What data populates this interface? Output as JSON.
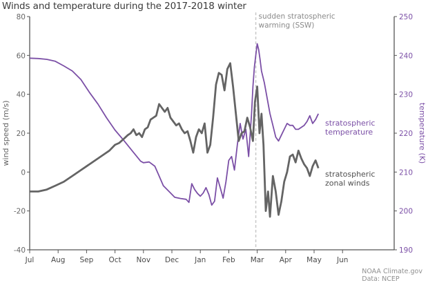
{
  "title": "Winds and temperature during the 2017-2018 winter",
  "credits": [
    "NOAA Climate.gov",
    "Data: NCEP"
  ],
  "colors": {
    "wind": "#646464",
    "temperature": "#7b4fa6",
    "axis": "#555555",
    "ssw_line": "#c8c8c8"
  },
  "chart_data": {
    "type": "line",
    "title": "Winds and temperature during the 2017-2018 winter",
    "xlabel": "",
    "x_ticks": [
      "Jul",
      "Aug",
      "Sep",
      "Oct",
      "Nov",
      "Dec",
      "Jan",
      "Feb",
      "Mar",
      "Apr",
      "May",
      "Jun"
    ],
    "y_left": {
      "label": "wind speed (m/s)",
      "ticks": [
        80,
        60,
        40,
        20,
        0,
        -20,
        -40
      ],
      "range": [
        -40,
        80
      ]
    },
    "y_right": {
      "label": "temperature (K)",
      "ticks": [
        250,
        240,
        230,
        220,
        210,
        200,
        190
      ],
      "range": [
        190,
        250
      ]
    },
    "annotation": {
      "text_line1": "sudden stratospheric",
      "text_line2": "warming (SSW)",
      "date_x_month": 7.95
    },
    "grid": false,
    "series": [
      {
        "name": "stratospheric zonal winds",
        "label_line1": "stratospheric",
        "label_line2": "zonal winds",
        "axis": "left",
        "x_month": [
          0,
          0.3,
          0.6,
          0.9,
          1.2,
          1.5,
          1.8,
          2.1,
          2.4,
          2.6,
          2.8,
          3.0,
          3.15,
          3.3,
          3.45,
          3.55,
          3.65,
          3.75,
          3.85,
          3.95,
          4.05,
          4.15,
          4.25,
          4.35,
          4.45,
          4.55,
          4.65,
          4.75,
          4.85,
          4.95,
          5.05,
          5.15,
          5.25,
          5.35,
          5.45,
          5.55,
          5.65,
          5.75,
          5.85,
          5.95,
          6.05,
          6.15,
          6.25,
          6.35,
          6.45,
          6.55,
          6.65,
          6.75,
          6.85,
          6.95,
          7.05,
          7.15,
          7.25,
          7.35,
          7.45,
          7.55,
          7.65,
          7.75,
          7.85,
          7.92,
          8.0,
          8.08,
          8.15,
          8.22,
          8.3,
          8.38,
          8.45,
          8.55,
          8.65,
          8.75,
          8.85,
          8.95,
          9.05,
          9.15,
          9.25,
          9.35,
          9.45,
          9.55,
          9.65,
          9.75,
          9.85,
          9.95,
          10.05,
          10.15
        ],
        "values": [
          -10,
          -10,
          -9,
          -7,
          -5,
          -2,
          1,
          4,
          7,
          9,
          11,
          14,
          15,
          17,
          19,
          20,
          22,
          19,
          20,
          18,
          22,
          23,
          27,
          28,
          29,
          35,
          33,
          31,
          33,
          28,
          26,
          24,
          25,
          22,
          20,
          21,
          16,
          10,
          18,
          22,
          20,
          25,
          10,
          14,
          28,
          45,
          51,
          50,
          42,
          53,
          56,
          44,
          30,
          16,
          20,
          21,
          28,
          23,
          16,
          36,
          44,
          20,
          30,
          14,
          -20,
          -10,
          -23,
          -2,
          -10,
          -22,
          -15,
          -5,
          0,
          8,
          9,
          5,
          11,
          7,
          4,
          2,
          -2,
          3,
          6,
          2
        ]
      },
      {
        "name": "stratospheric temperature",
        "label_line1": "stratospheric",
        "label_line2": "temperature",
        "axis": "right",
        "x_month": [
          0,
          0.3,
          0.6,
          0.9,
          1.2,
          1.5,
          1.8,
          2.1,
          2.4,
          2.7,
          3.0,
          3.3,
          3.6,
          3.9,
          4.0,
          4.2,
          4.4,
          4.55,
          4.7,
          4.9,
          5.1,
          5.3,
          5.5,
          5.6,
          5.7,
          5.8,
          5.9,
          6.0,
          6.1,
          6.2,
          6.3,
          6.4,
          6.5,
          6.6,
          6.7,
          6.8,
          6.9,
          7.0,
          7.1,
          7.2,
          7.3,
          7.4,
          7.5,
          7.6,
          7.7,
          7.8,
          7.85,
          7.9,
          7.95,
          8.0,
          8.05,
          8.1,
          8.15,
          8.25,
          8.35,
          8.45,
          8.55,
          8.65,
          8.75,
          8.85,
          8.95,
          9.05,
          9.15,
          9.25,
          9.35,
          9.45,
          9.55,
          9.65,
          9.75,
          9.85,
          9.95,
          10.05,
          10.15
        ],
        "values": [
          239.3,
          239.2,
          239.0,
          238.5,
          237.3,
          236.0,
          233.8,
          230.5,
          227.5,
          224.0,
          220.8,
          218.2,
          215.5,
          212.8,
          212.4,
          212.6,
          211.5,
          209.0,
          206.5,
          205.0,
          203.5,
          203.2,
          203.0,
          202.2,
          207.0,
          205.5,
          204.5,
          203.8,
          204.6,
          206.0,
          204.2,
          201.5,
          202.5,
          208.5,
          206.0,
          203.3,
          207.5,
          213.0,
          214.0,
          210.5,
          217.0,
          222.5,
          218.5,
          221.0,
          214.0,
          225.0,
          232.0,
          237.0,
          240.0,
          243.0,
          241.5,
          239.0,
          236.0,
          233.0,
          229.0,
          225.0,
          222.0,
          219.0,
          218.0,
          219.5,
          221.0,
          222.5,
          222.0,
          222.0,
          221.0,
          221.0,
          221.5,
          222.0,
          223.0,
          224.5,
          222.5,
          223.5,
          225.0
        ]
      }
    ]
  }
}
